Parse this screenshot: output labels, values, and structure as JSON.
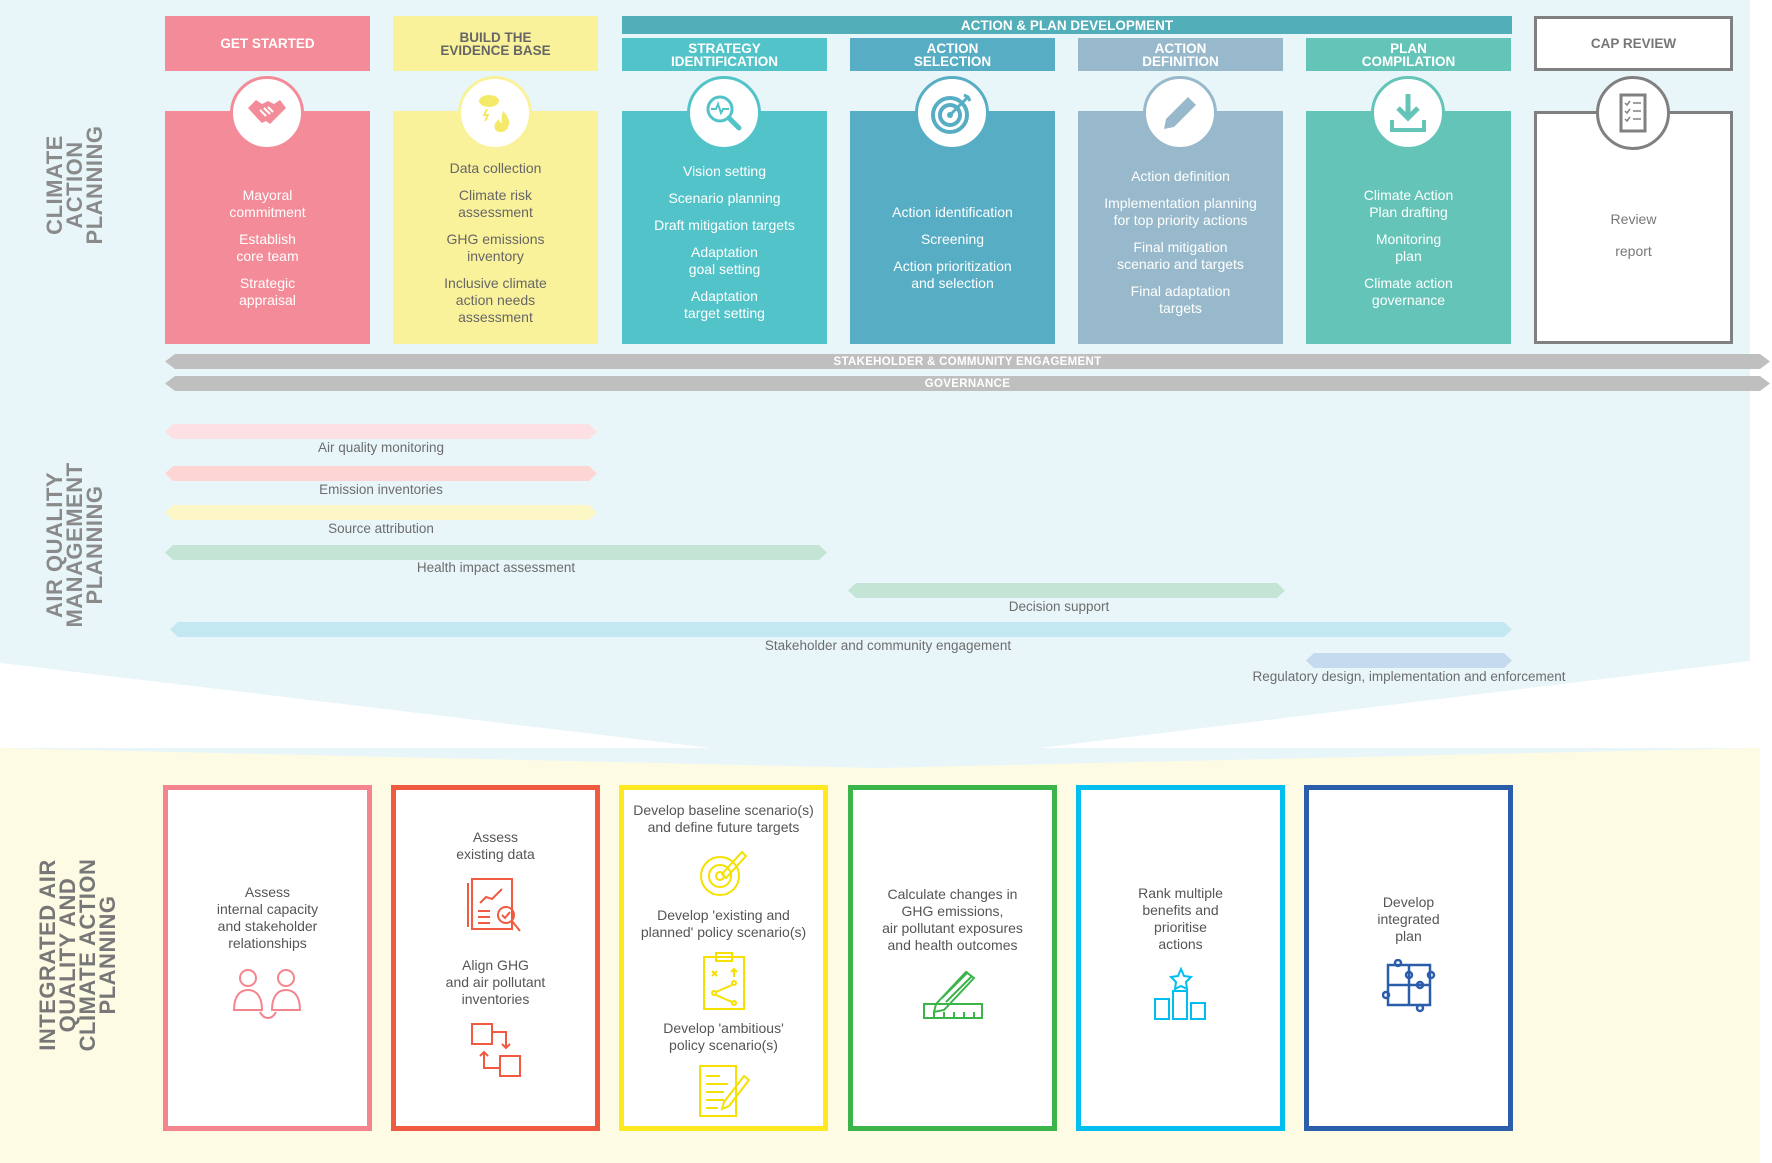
{
  "side_labels": {
    "cap": "CLIMATE\nACTION\nPLANNING",
    "aqm": "AIR QUALITY\nMANAGEMENT\nPLANNING",
    "integrated": "INTEGRATED AIR\nQUALITY AND\nCLIMATE ACTION\nPLANNING"
  },
  "action_plan_bar": "ACTION & PLAN DEVELOPMENT",
  "columns": [
    {
      "title": "GET STARTED",
      "icon": "handshake-icon",
      "color": "#f48b98",
      "items": [
        "Mayoral\ncommitment",
        "Establish\ncore team",
        "Strategic\nappraisal"
      ]
    },
    {
      "title": "BUILD THE\nEVIDENCE BASE",
      "icon": "weather-fire-icon",
      "color": "#f9f29b",
      "items": [
        "Data collection",
        "Climate risk\nassessment",
        "GHG emissions\ninventory",
        "Inclusive climate\naction needs\nassessment"
      ]
    },
    {
      "title": "STRATEGY\nIDENTIFICATION",
      "icon": "magnifier-pulse-icon",
      "color": "#52c3c8",
      "items": [
        "Vision setting",
        "Scenario planning",
        "Draft mitigation targets",
        "Adaptation\ngoal setting",
        "Adaptation\ntarget setting"
      ]
    },
    {
      "title": "ACTION\nSELECTION",
      "icon": "target-icon",
      "color": "#56adc4",
      "items": [
        "Action identification",
        "Screening",
        "Action prioritization\nand selection"
      ]
    },
    {
      "title": "ACTION\nDEFINITION",
      "icon": "pencil-icon",
      "color": "#97b9cb",
      "items": [
        "Action definition",
        "Implementation planning\nfor top priority actions",
        "Final mitigation\nscenario and targets",
        "Final adaptation\ntargets"
      ]
    },
    {
      "title": "PLAN\nCOMPILATION",
      "icon": "download-icon",
      "color": "#64c4b7",
      "items": [
        "Climate Action\nPlan drafting",
        "Monitoring\nplan",
        "Climate action\ngovernance"
      ]
    },
    {
      "title": "CAP REVIEW",
      "icon": "checklist-icon",
      "color": "#808080",
      "items": [
        "Review",
        "report"
      ]
    }
  ],
  "cross_bands": [
    "STAKEHOLDER & COMMUNITY ENGAGEMENT",
    "GOVERNANCE"
  ],
  "aqm_bands": [
    {
      "label": "Air quality monitoring",
      "color": "#fde0e3"
    },
    {
      "label": "Emission inventories",
      "color": "#fdd6d3"
    },
    {
      "label": "Source attribution",
      "color": "#fdf6c6"
    },
    {
      "label": "Health impact assessment",
      "color": "#c4e5d6"
    },
    {
      "label": "Decision support",
      "color": "#c4e5d6"
    },
    {
      "label": "Stakeholder and community engagement",
      "color": "#c3e8f1"
    },
    {
      "label": "Regulatory design, implementation and enforcement",
      "color": "#c5d9ef"
    }
  ],
  "integrated_steps": [
    {
      "color": "#f4858f",
      "icon": "people-icon",
      "texts": [
        "Assess\ninternal capacity\nand stakeholder\nrelationships"
      ]
    },
    {
      "color": "#f05a40",
      "icons": [
        "data-analysis-icon",
        "align-arrows-icon"
      ],
      "texts": [
        "Assess\nexisting data",
        "Align GHG\nand air pollutant\ninventories"
      ]
    },
    {
      "color": "#ffe81f",
      "icons": [
        "target-pencil-icon",
        "clipboard-strategy-icon",
        "document-pencil-icon"
      ],
      "texts": [
        "Develop baseline scenario(s)\nand define future targets",
        "Develop 'existing and\nplanned' policy scenario(s)",
        "Develop 'ambitious'\npolicy scenario(s)"
      ]
    },
    {
      "color": "#3bb44a",
      "icon": "pencil-ruler-icon",
      "texts": [
        "Calculate changes in\nGHG emissions,\nair pollutant exposures\nand health outcomes"
      ]
    },
    {
      "color": "#00bff0",
      "icon": "podium-star-icon",
      "texts": [
        "Rank multiple\nbenefits and\nprioritise\nactions"
      ]
    },
    {
      "color": "#2a5daa",
      "icon": "puzzle-icon",
      "texts": [
        "Develop\nintegrated\nplan"
      ]
    }
  ]
}
